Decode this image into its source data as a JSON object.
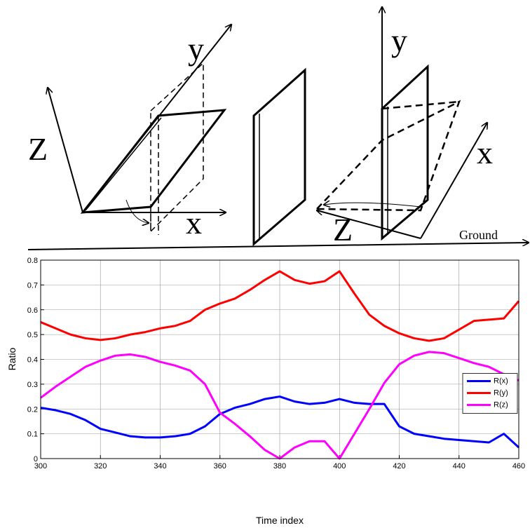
{
  "diagram": {
    "labels": [
      "y",
      "Z",
      "x",
      "y",
      "x",
      "Z",
      "Ground"
    ]
  },
  "chart_data": {
    "type": "line",
    "xlabel": "Time index",
    "ylabel": "Ratio",
    "x": [
      300,
      305,
      310,
      315,
      320,
      325,
      330,
      335,
      340,
      345,
      350,
      355,
      360,
      365,
      370,
      375,
      380,
      385,
      390,
      395,
      400,
      405,
      410,
      415,
      420,
      425,
      430,
      435,
      440,
      445,
      450,
      455,
      460
    ],
    "series": [
      {
        "name": "R(x)",
        "color": "#0000ff",
        "values": [
          0.205,
          0.195,
          0.18,
          0.155,
          0.12,
          0.105,
          0.09,
          0.085,
          0.085,
          0.09,
          0.1,
          0.13,
          0.18,
          0.205,
          0.22,
          0.24,
          0.25,
          0.23,
          0.22,
          0.225,
          0.24,
          0.225,
          0.22,
          0.22,
          0.13,
          0.1,
          0.09,
          0.08,
          0.075,
          0.07,
          0.065,
          0.1,
          0.045
        ]
      },
      {
        "name": "R(y)",
        "color": "#ff0000",
        "values": [
          0.55,
          0.525,
          0.5,
          0.485,
          0.478,
          0.485,
          0.5,
          0.51,
          0.525,
          0.535,
          0.555,
          0.6,
          0.625,
          0.645,
          0.68,
          0.72,
          0.755,
          0.72,
          0.705,
          0.715,
          0.755,
          0.665,
          0.58,
          0.535,
          0.505,
          0.485,
          0.475,
          0.485,
          0.52,
          0.555,
          0.56,
          0.565,
          0.635
        ]
      },
      {
        "name": "R(z)",
        "color": "#ff00ff",
        "values": [
          0.245,
          0.29,
          0.33,
          0.37,
          0.395,
          0.415,
          0.42,
          0.41,
          0.39,
          0.375,
          0.355,
          0.3,
          0.185,
          0.14,
          0.09,
          0.035,
          0,
          0.045,
          0.07,
          0.07,
          0,
          0.1,
          0.2,
          0.305,
          0.38,
          0.415,
          0.43,
          0.425,
          0.405,
          0.385,
          0.37,
          0.34,
          0.315
        ]
      }
    ],
    "xlim": [
      300,
      460
    ],
    "xticks": [
      300,
      320,
      340,
      360,
      380,
      400,
      420,
      440,
      460
    ],
    "ylim": [
      0,
      0.8
    ],
    "yticks": [
      0,
      0.1,
      0.2,
      0.3,
      0.4,
      0.5,
      0.6,
      0.7,
      0.8
    ],
    "grid": true,
    "legend": "right"
  }
}
